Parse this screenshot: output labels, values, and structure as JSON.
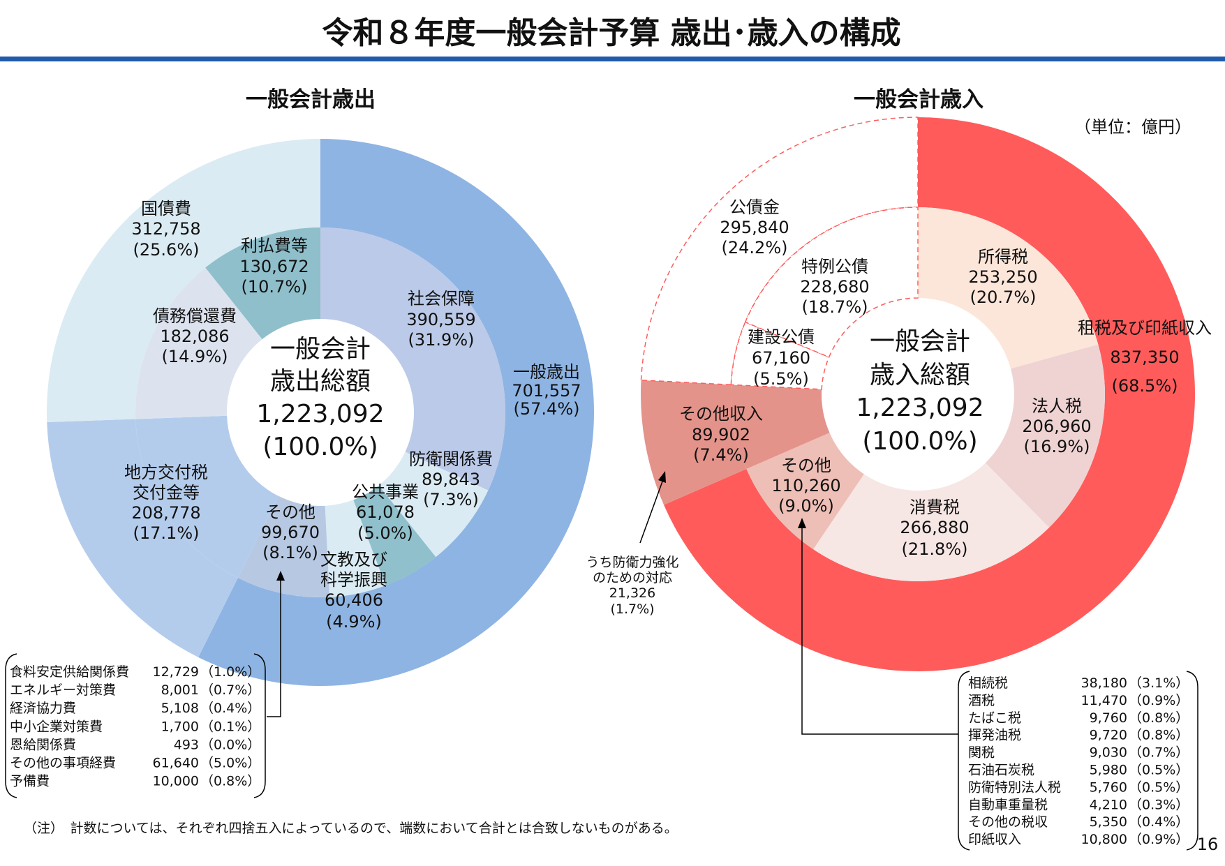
{
  "header": {
    "title": "令和８年度一般会計予算 歳出･歳入の構成",
    "unit": "（単位：億円）",
    "page_number": "16"
  },
  "note": "（注）　計数については、それぞれ四捨五入によっているので、端数において合計とは合致しないものがある。",
  "colors": {
    "accent_line": "#1F5BAA",
    "revenue_main": "#FF5B5B",
    "bond_dash": "#FF5B5B"
  },
  "chart_data": [
    {
      "type": "donut",
      "title": "一般会計歳出",
      "total": 1223092,
      "center": {
        "line1": "一般会計",
        "line2": "歳出総額",
        "value": "1,223,092",
        "pct": "(100.0%)"
      },
      "outer": [
        {
          "name": "一般歳出",
          "value": 701557,
          "value_label": "701,557",
          "pct": "(57.4%)",
          "color": "#8EB4E3"
        },
        {
          "name": "地方交付税交付金等",
          "value": 208778,
          "value_label": "208,778",
          "pct": "(17.1%)",
          "color": "#B4CCEC"
        },
        {
          "name": "国債費",
          "value": 312758,
          "value_label": "312,758",
          "pct": "(25.6%)",
          "color": "#DAEBF3"
        }
      ],
      "inner": [
        {
          "name": "社会保障",
          "value": 390559,
          "value_label": "390,559",
          "pct": "(31.9%)",
          "color": "#BBCAE8"
        },
        {
          "name": "防衛関係費",
          "value": 89843,
          "value_label": "89,843",
          "pct": "(7.3%)",
          "color": "#DAEBF3"
        },
        {
          "name": "公共事業",
          "value": 61078,
          "value_label": "61,078",
          "pct": "(5.0%)",
          "color": "#8FC0CB"
        },
        {
          "name": "文教及び科学振興",
          "value": 60406,
          "value_label": "60,406",
          "pct": "(4.9%)",
          "color": "#DAEBF3"
        },
        {
          "name": "その他",
          "value": 99670,
          "value_label": "99,670",
          "pct": "(8.1%)",
          "color": "#B7C8E2"
        },
        {
          "name": "地方交付税交付金等",
          "value": 208778,
          "value_label": "208,778",
          "pct": "(17.1%)",
          "color": "#B4CCEC"
        },
        {
          "name": "債務償還費",
          "value": 182086,
          "value_label": "182,086",
          "pct": "(14.9%)",
          "color": "#DCE3EF"
        },
        {
          "name": "利払費等",
          "value": 130672,
          "value_label": "130,672",
          "pct": "(10.7%)",
          "color": "#8FBFCA"
        }
      ],
      "breakdown_other": [
        {
          "name": "食料安定供給関係費",
          "value": "12,729",
          "pct": "（1.0%）"
        },
        {
          "name": "エネルギー対策費",
          "value": "8,001",
          "pct": "（0.7%）"
        },
        {
          "name": "経済協力費",
          "value": "5,108",
          "pct": "（0.4%）"
        },
        {
          "name": "中小企業対策費",
          "value": "1,700",
          "pct": "（0.1%）"
        },
        {
          "name": "恩給関係費",
          "value": "493",
          "pct": "（0.0%）"
        },
        {
          "name": "その他の事項経費",
          "value": "61,640",
          "pct": "（5.0%）"
        },
        {
          "name": "予備費",
          "value": "10,000",
          "pct": "（0.8%）"
        }
      ]
    },
    {
      "type": "donut",
      "title": "一般会計歳入",
      "total": 1223092,
      "center": {
        "line1": "一般会計",
        "line2": "歳入総額",
        "value": "1,223,092",
        "pct": "(100.0%)"
      },
      "outer": [
        {
          "name": "租税及び印紙収入",
          "value": 837350,
          "value_label": "837,350",
          "pct": "(68.5%)",
          "color": "#FF5B5B"
        },
        {
          "name": "その他収入",
          "value": 89902,
          "value_label": "89,902",
          "pct": "(7.4%)",
          "color": "#E3938A"
        },
        {
          "name": "公債金",
          "value": 295840,
          "value_label": "295,840",
          "pct": "(24.2%)",
          "color": "#FFFFFF",
          "dashed": true
        }
      ],
      "inner": [
        {
          "name": "所得税",
          "value": 253250,
          "value_label": "253,250",
          "pct": "(20.7%)",
          "color": "#FCE6DA"
        },
        {
          "name": "法人税",
          "value": 206960,
          "value_label": "206,960",
          "pct": "(16.9%)",
          "color": "#EFD3D3"
        },
        {
          "name": "消費税",
          "value": 266880,
          "value_label": "266,880",
          "pct": "(21.8%)",
          "color": "#F6E6E4"
        },
        {
          "name": "その他",
          "value": 110260,
          "value_label": "110,260",
          "pct": "(9.0%)",
          "color": "#EEBFB6"
        },
        {
          "name": "その他収入",
          "value": 89902,
          "value_label": "89,902",
          "pct": "(7.4%)",
          "color": "#E3938A"
        },
        {
          "name": "建設公債",
          "value": 67160,
          "value_label": "67,160",
          "pct": "(5.5%)",
          "color": "#FFFFFF",
          "dashed": true
        },
        {
          "name": "特例公債",
          "value": 228680,
          "value_label": "228,680",
          "pct": "(18.7%)",
          "color": "#FFFFFF",
          "dashed": true
        }
      ],
      "annotation_defense": {
        "line1": "うち防衛力強化",
        "line2": "のための対応",
        "value": "21,326",
        "pct": "(1.7%)"
      },
      "breakdown_other": [
        {
          "name": "相続税",
          "value": "38,180",
          "pct": "（3.1%）"
        },
        {
          "name": "酒税",
          "value": "11,470",
          "pct": "（0.9%）"
        },
        {
          "name": "たばこ税",
          "value": "9,760",
          "pct": "（0.8%）"
        },
        {
          "name": "揮発油税",
          "value": "9,720",
          "pct": "（0.8%）"
        },
        {
          "name": "関税",
          "value": "9,030",
          "pct": "（0.7%）"
        },
        {
          "name": "石油石炭税",
          "value": "5,980",
          "pct": "（0.5%）"
        },
        {
          "name": "防衛特別法人税",
          "value": "5,760",
          "pct": "（0.5%）"
        },
        {
          "name": "自動車重量税",
          "value": "4,210",
          "pct": "（0.3%）"
        },
        {
          "name": "その他の税収",
          "value": "5,350",
          "pct": "（0.4%）"
        },
        {
          "name": "印紙収入",
          "value": "10,800",
          "pct": "（0.9%）"
        }
      ]
    }
  ]
}
